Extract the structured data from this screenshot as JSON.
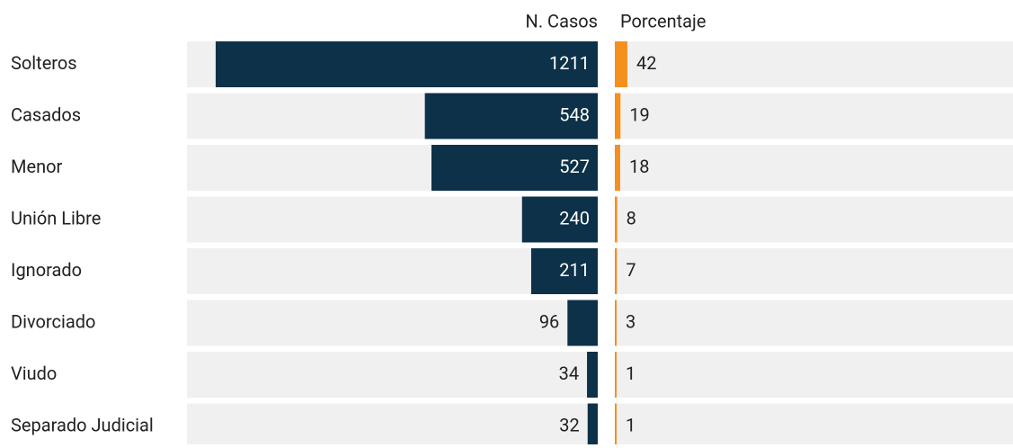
{
  "chart_data": {
    "type": "bar",
    "categories": [
      "Solteros",
      "Casados",
      "Menor",
      "Unión Libre",
      "Ignorado",
      "Divorciado",
      "Viudo",
      "Separado Judicial"
    ],
    "series": [
      {
        "name": "N. Casos",
        "color": "#0c3148",
        "values": [
          1211,
          548,
          527,
          240,
          211,
          96,
          34,
          32
        ]
      },
      {
        "name": "Porcentaje",
        "color": "#f5901e",
        "values": [
          42,
          19,
          18,
          8,
          7,
          3,
          1,
          1
        ]
      }
    ]
  }
}
